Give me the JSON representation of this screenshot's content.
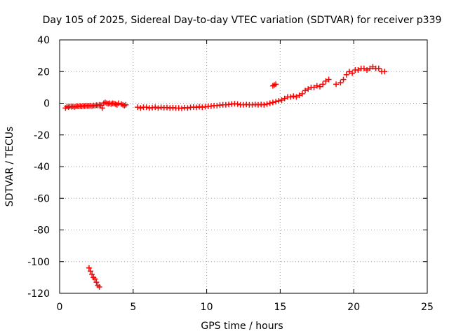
{
  "chart_data": {
    "type": "scatter",
    "title": "Day 105 of 2025, Sidereal Day-to-day VTEC variation (SDTVAR) for receiver p339",
    "xlabel": "GPS time / hours",
    "ylabel": "SDTVAR / TECUs",
    "xlim": [
      0,
      25
    ],
    "ylim": [
      -120,
      40
    ],
    "xticks": [
      0,
      5,
      10,
      15,
      20,
      25
    ],
    "yticks": [
      -120,
      -100,
      -80,
      -60,
      -40,
      -20,
      0,
      20,
      40
    ],
    "grid": true,
    "marker": "+",
    "colors": {
      "marker": "#ff0000",
      "grid": "#a0a0a0",
      "axis": "#000000"
    },
    "series": [
      {
        "name": "SDTVAR",
        "x": [
          0.4,
          0.5,
          0.6,
          0.7,
          0.8,
          0.9,
          1.0,
          1.1,
          1.2,
          1.3,
          1.4,
          1.5,
          1.6,
          1.7,
          1.8,
          1.9,
          2.0,
          2.1,
          2.2,
          2.3,
          2.4,
          2.5,
          2.6,
          2.7,
          2.8,
          2.9,
          3.0,
          3.1,
          3.2,
          3.3,
          3.4,
          3.5,
          3.6,
          3.7,
          3.8,
          3.9,
          4.0,
          4.2,
          4.3,
          4.4,
          4.5,
          5.3,
          5.5,
          5.7,
          5.9,
          6.1,
          6.3,
          6.5,
          6.7,
          6.9,
          7.1,
          7.3,
          7.5,
          7.7,
          7.9,
          8.1,
          8.3,
          8.5,
          8.7,
          8.9,
          9.1,
          9.3,
          9.5,
          9.7,
          9.9,
          10.1,
          10.3,
          10.5,
          10.7,
          10.9,
          11.1,
          11.3,
          11.5,
          11.7,
          11.9,
          12.1,
          12.3,
          12.5,
          12.7,
          12.9,
          13.1,
          13.3,
          13.5,
          13.7,
          13.9,
          14.1,
          14.3,
          14.5,
          14.7,
          14.9,
          15.1,
          15.3,
          15.5,
          15.7,
          15.9,
          16.1,
          16.3,
          16.5,
          16.7,
          16.9,
          17.1,
          17.3,
          17.5,
          17.7,
          17.9,
          18.1,
          18.3,
          18.8,
          19.1,
          19.3,
          19.5,
          19.7,
          19.9,
          20.1,
          20.3,
          20.5,
          20.7,
          20.9,
          21.1,
          21.3,
          21.5,
          21.7,
          21.9,
          22.1,
          2.0,
          2.1,
          2.2,
          2.3,
          2.4,
          2.5,
          2.6,
          2.7,
          14.5,
          14.6,
          14.7
        ],
        "y": [
          -3,
          -2,
          -2.5,
          -2,
          -2.2,
          -2,
          -2.4,
          -2,
          -1.8,
          -2,
          -1.7,
          -2,
          -1.6,
          -1.8,
          -1.5,
          -1.7,
          -1.6,
          -1.5,
          -1.8,
          -1.4,
          -1.6,
          -1.2,
          -1.4,
          -1,
          -1.2,
          -3,
          0,
          0.5,
          0,
          -0.3,
          0,
          -0.5,
          0,
          -0.2,
          -0.5,
          -1,
          0,
          -0.5,
          -1,
          -1.5,
          -1,
          -2.5,
          -3,
          -2.5,
          -2.5,
          -3,
          -2.8,
          -2.5,
          -3,
          -2.6,
          -2.8,
          -2.7,
          -3,
          -2.8,
          -3,
          -3,
          -3.2,
          -2.8,
          -3,
          -2.6,
          -2.4,
          -2.6,
          -2.2,
          -2.5,
          -2.2,
          -2,
          -1.8,
          -1.5,
          -1.5,
          -1.2,
          -1,
          -1,
          -0.8,
          -0.5,
          -0.3,
          -0.5,
          -1,
          -1,
          -0.8,
          -1,
          -1,
          -0.8,
          -1,
          -0.8,
          -1,
          -0.5,
          0,
          0.5,
          1,
          1.5,
          2,
          3,
          4,
          4,
          4.5,
          4,
          5,
          6,
          8,
          9,
          10,
          10,
          11,
          10.5,
          12,
          14,
          15,
          12,
          13,
          15,
          18,
          20,
          19,
          21,
          21,
          22,
          22,
          21,
          22,
          23,
          22,
          22,
          20,
          20,
          -104,
          -106,
          -108,
          -110,
          -111,
          -113,
          -115,
          -116,
          11,
          11.5,
          12
        ]
      }
    ]
  }
}
